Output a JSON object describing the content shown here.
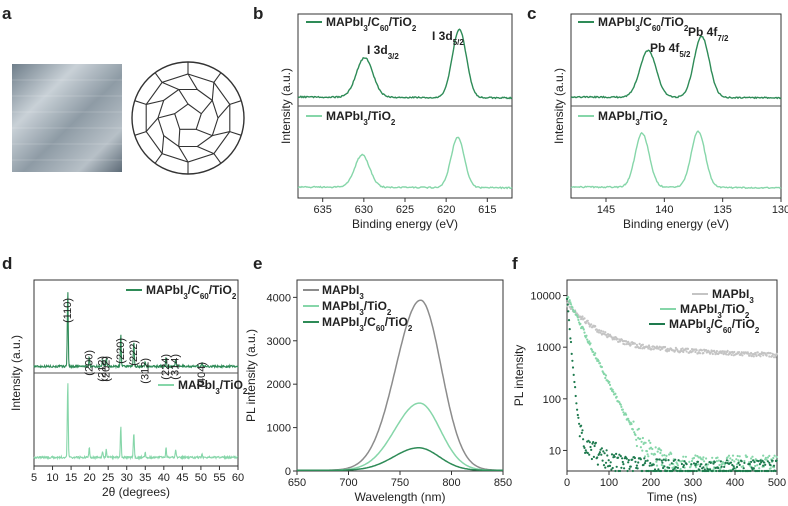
{
  "panels": {
    "a": "a",
    "b": "b",
    "c": "c",
    "d": "d",
    "e": "e",
    "f": "f"
  },
  "colors": {
    "dark": "#2e8b57",
    "light": "#86d6a9",
    "gray": "#8c8c8c",
    "lightgray": "#c4c4c4",
    "darkest": "#1e7a4e"
  },
  "chart_data": [
    {
      "id": "b",
      "type": "line",
      "title": "",
      "xlabel": "Binding energy (eV)",
      "ylabel": "Intensity (a.u.)",
      "xlim": [
        638,
        612
      ],
      "xticks": [
        635,
        630,
        625,
        620,
        615
      ],
      "peak_labels": [
        "I 3d3/2",
        "I 3d5/2"
      ],
      "series": [
        {
          "name": "MAPbI3/C60/TiO2",
          "legend_label": "MAPbI3/C60/TiO2",
          "color": "#2e8b57",
          "peaks": [
            {
              "center": 629.9,
              "height": 0.55,
              "width": 1.0
            },
            {
              "center": 618.4,
              "height": 0.95,
              "width": 0.85
            }
          ]
        },
        {
          "name": "MAPbI3/TiO2",
          "legend_label": "MAPbI3/TiO2",
          "color": "#86d6a9",
          "peaks": [
            {
              "center": 630.2,
              "height": 0.45,
              "width": 0.9
            },
            {
              "center": 618.6,
              "height": 0.7,
              "width": 0.8
            }
          ]
        }
      ]
    },
    {
      "id": "c",
      "type": "line",
      "title": "",
      "xlabel": "Binding energy (eV)",
      "ylabel": "Intensity (a.u.)",
      "xlim": [
        148,
        130
      ],
      "xticks": [
        145,
        140,
        135,
        130
      ],
      "peak_labels": [
        "Pb 4f5/2",
        "Pb 4f7/2"
      ],
      "series": [
        {
          "name": "MAPbI3/C60/TiO2",
          "legend_label": "MAPbI3/C60/TiO2",
          "color": "#2e8b57",
          "peaks": [
            {
              "center": 141.4,
              "height": 0.65,
              "width": 0.7
            },
            {
              "center": 136.8,
              "height": 0.85,
              "width": 0.65
            }
          ]
        },
        {
          "name": "MAPbI3/TiO2",
          "legend_label": "MAPbI3/TiO2",
          "color": "#86d6a9",
          "peaks": [
            {
              "center": 141.9,
              "height": 0.75,
              "width": 0.6
            },
            {
              "center": 137.1,
              "height": 0.78,
              "width": 0.6
            }
          ]
        }
      ]
    },
    {
      "id": "d",
      "type": "line",
      "title": "",
      "xlabel": "2θ (degrees)",
      "ylabel": "Intensity (a.u.)",
      "xlim": [
        5,
        60
      ],
      "xticks": [
        5,
        10,
        15,
        20,
        25,
        30,
        35,
        40,
        45,
        50,
        55,
        60
      ],
      "reflections": [
        {
          "label": "(110)",
          "two_theta": 14.1,
          "height": 0.95
        },
        {
          "label": "(200)",
          "two_theta": 19.9,
          "height": 0.12
        },
        {
          "label": "(212)",
          "two_theta": 23.5,
          "height": 0.08
        },
        {
          "label": "(202)",
          "two_theta": 24.5,
          "height": 0.1
        },
        {
          "label": "(220)",
          "two_theta": 28.4,
          "height": 0.4
        },
        {
          "label": "(222)",
          "two_theta": 31.9,
          "height": 0.32
        },
        {
          "label": "(312)",
          "two_theta": 35.0,
          "height": 0.06
        },
        {
          "label": "(224)",
          "two_theta": 40.6,
          "height": 0.12
        },
        {
          "label": "(314)",
          "two_theta": 43.2,
          "height": 0.1
        },
        {
          "label": "(404)",
          "two_theta": 50.3,
          "height": 0.05
        }
      ],
      "series": [
        {
          "name": "MAPbI3/C60/TiO2",
          "legend_label": "MAPbI3/C60/TiO2",
          "color": "#2e8b57"
        },
        {
          "name": "MAPbI3/TiO2",
          "legend_label": "MAPbI3/TiO2",
          "color": "#86d6a9"
        }
      ]
    },
    {
      "id": "e",
      "type": "line",
      "title": "",
      "xlabel": "Wavelength (nm)",
      "ylabel": "PL intensity (a.u.)",
      "xlim": [
        650,
        850
      ],
      "ylim": [
        0,
        4400
      ],
      "xticks": [
        650,
        700,
        750,
        800,
        850
      ],
      "yticks": [
        0,
        1000,
        2000,
        3000,
        4000
      ],
      "series": [
        {
          "name": "MAPbI3",
          "legend_label": "MAPbI3",
          "color": "#8c8c8c",
          "peak_nm": 770,
          "peak": 3920
        },
        {
          "name": "MAPbI3/TiO2",
          "legend_label": "MAPbI3/TiO2",
          "color": "#86d6a9",
          "peak_nm": 769,
          "peak": 1550
        },
        {
          "name": "MAPbI3/C60/TiO2",
          "legend_label": "MAPbI3/C60/TiO2",
          "color": "#2e8b57",
          "peak_nm": 768,
          "peak": 520
        }
      ]
    },
    {
      "id": "f",
      "type": "scatter",
      "title": "",
      "xlabel": "Time (ns)",
      "ylabel": "PL intensity",
      "xlim": [
        0,
        500
      ],
      "ylim_log": [
        4,
        20000
      ],
      "yscale": "log",
      "xticks": [
        0,
        100,
        200,
        300,
        400,
        500
      ],
      "yticks": [
        10,
        100,
        1000,
        10000
      ],
      "yticklabels": [
        "10",
        "100",
        "1000",
        "10000"
      ],
      "series": [
        {
          "name": "MAPbI3",
          "legend_label": "MAPbI3",
          "color": "#c4c4c4",
          "decay": [
            {
              "amp": 5800,
              "tau": 45
            },
            {
              "amp": 1100,
              "tau": 1100
            }
          ],
          "floor": 0
        },
        {
          "name": "MAPbI3/TiO2",
          "legend_label": "MAPbI3/TiO2",
          "color": "#86d6a9",
          "decay": [
            {
              "amp": 9000,
              "tau": 25
            },
            {
              "amp": 700,
              "tau": 32
            }
          ],
          "floor": 5.5
        },
        {
          "name": "MAPbI3/C60/TiO2",
          "legend_label": "MAPbI3/C60/TiO2",
          "color": "#1e7a4e",
          "decay": [
            {
              "amp": 9500,
              "tau": 4.5
            },
            {
              "amp": 25,
              "tau": 45
            }
          ],
          "floor": 4.5
        }
      ]
    }
  ]
}
